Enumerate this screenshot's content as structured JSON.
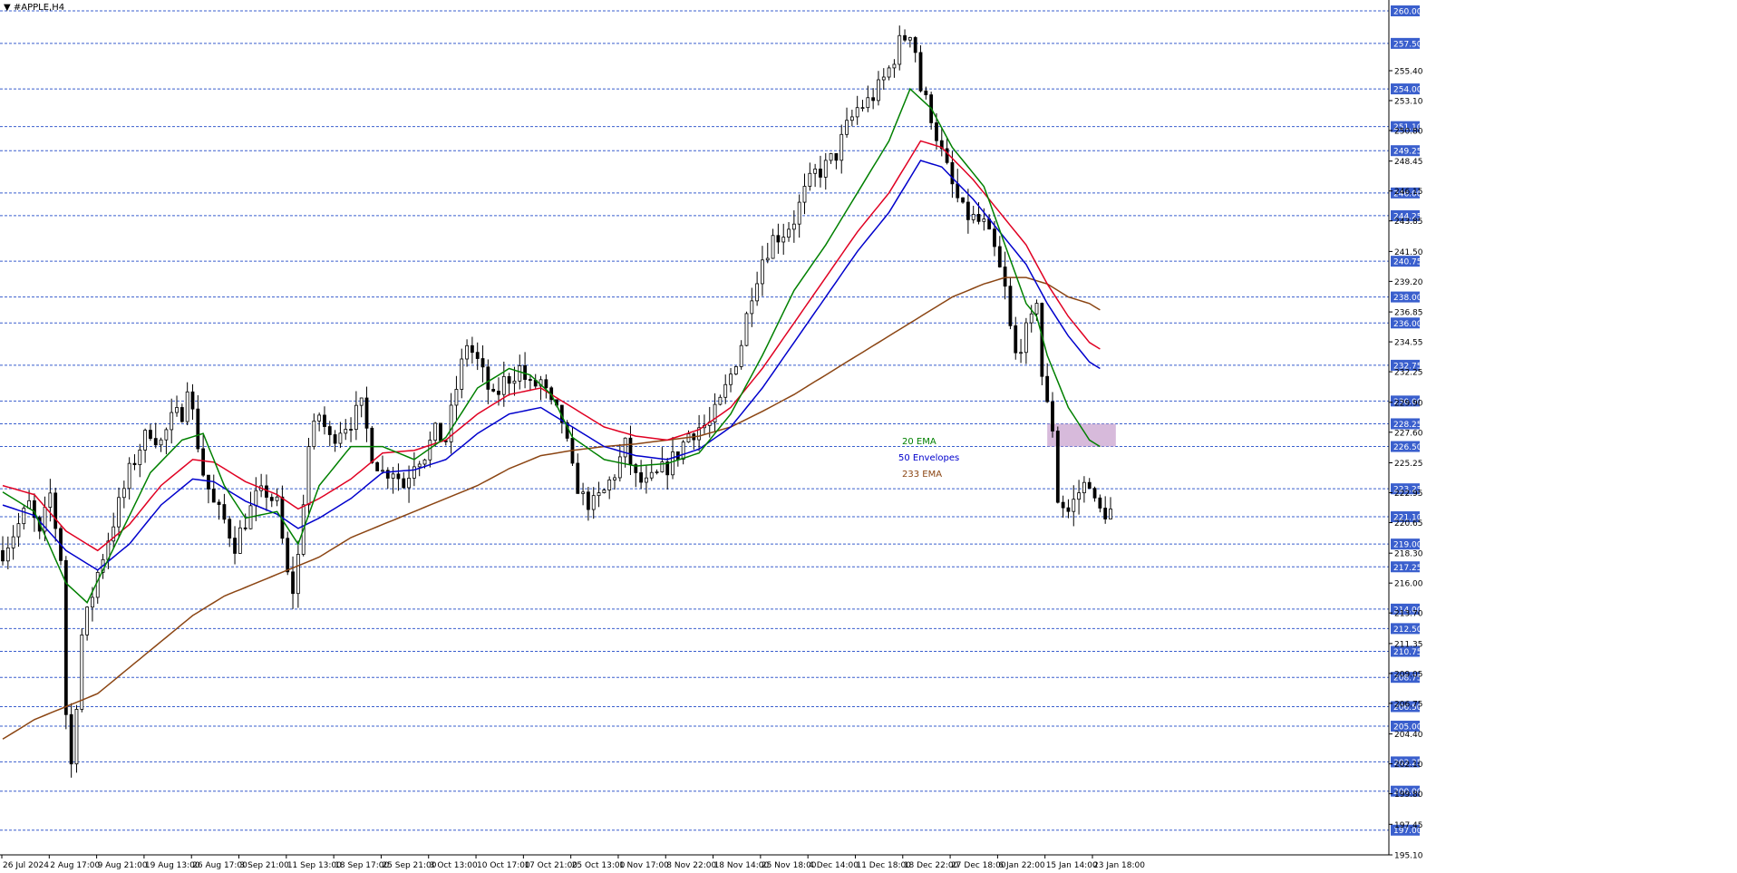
{
  "header": {
    "symbol_label": "#APPLE,H4"
  },
  "colors": {
    "background": "#ffffff",
    "candle": "#000000",
    "ema20": "#008000",
    "env_upper": "#e00022",
    "env_lower": "#0000cc",
    "ema233": "#8b4513",
    "level_line": "#3a5fcd",
    "level_label_bg": "#3a5fcd",
    "zone": "#c9a3cf"
  },
  "chart_data": {
    "type": "candlestick",
    "instrument": "#APPLE",
    "timeframe": "H4",
    "ylim": [
      195.1,
      260.0
    ],
    "y_ticks": [
      "255.40",
      "253.10",
      "250.80",
      "248.45",
      "246.15",
      "243.85",
      "241.50",
      "239.20",
      "236.85",
      "234.55",
      "232.25",
      "229.90",
      "227.60",
      "225.25",
      "222.95",
      "220.65",
      "218.30",
      "216.00",
      "213.70",
      "211.35",
      "209.05",
      "206.75",
      "204.40",
      "202.10",
      "199.80",
      "197.45",
      "195.10"
    ],
    "level_lines": [
      "260.00",
      "257.50",
      "254.00",
      "251.10",
      "249.25",
      "246.00",
      "244.25",
      "240.75",
      "238.00",
      "236.00",
      "232.75",
      "230.00",
      "228.25",
      "226.50",
      "223.25",
      "221.10",
      "219.00",
      "217.25",
      "214.00",
      "212.50",
      "210.75",
      "208.75",
      "206.50",
      "205.00",
      "202.25",
      "200.00",
      "197.00"
    ],
    "x_tick_labels": [
      "26 Jul 2024",
      "2 Aug 17:00",
      "9 Aug 21:00",
      "19 Aug 13:00",
      "26 Aug 17:00",
      "3 Sep 21:00",
      "11 Sep 13:00",
      "18 Sep 17:00",
      "25 Sep 21:00",
      "3 Oct 13:00",
      "10 Oct 17:00",
      "17 Oct 21:00",
      "25 Oct 13:00",
      "1 Nov 17:00",
      "8 Nov 22:00",
      "18 Nov 14:00",
      "25 Nov 18:00",
      "4 Dec 14:00",
      "11 Dec 18:00",
      "18 Dec 22:00",
      "27 Dec 18:00",
      "6 Jan 22:00",
      "15 Jan 14:00",
      "23 Jan 18:00"
    ],
    "price_path": [
      [
        0,
        218.5
      ],
      [
        3,
        220.5
      ],
      [
        5,
        222.0
      ],
      [
        7,
        219.5
      ],
      [
        9,
        222.8
      ],
      [
        11,
        218.0
      ],
      [
        12,
        206.0
      ],
      [
        13,
        202.0
      ],
      [
        14,
        207.0
      ],
      [
        15,
        212.0
      ],
      [
        16,
        213.5
      ],
      [
        18,
        216.8
      ],
      [
        20,
        219.5
      ],
      [
        22,
        222.0
      ],
      [
        24,
        224.5
      ],
      [
        26,
        226.5
      ],
      [
        28,
        227.8
      ],
      [
        30,
        226.8
      ],
      [
        32,
        228.5
      ],
      [
        34,
        229.2
      ],
      [
        35,
        231.5
      ],
      [
        36,
        229.0
      ],
      [
        38,
        224.5
      ],
      [
        40,
        222.0
      ],
      [
        42,
        220.8
      ],
      [
        44,
        219.0
      ],
      [
        46,
        220.8
      ],
      [
        48,
        222.5
      ],
      [
        50,
        223.0
      ],
      [
        52,
        222.0
      ],
      [
        54,
        216.5
      ],
      [
        55,
        215.5
      ],
      [
        56,
        218.0
      ],
      [
        57,
        222.5
      ],
      [
        58,
        226.5
      ],
      [
        60,
        229.0
      ],
      [
        62,
        227.0
      ],
      [
        64,
        228.0
      ],
      [
        66,
        228.5
      ],
      [
        68,
        229.5
      ],
      [
        70,
        226.0
      ],
      [
        72,
        224.5
      ],
      [
        74,
        224.8
      ],
      [
        76,
        223.5
      ],
      [
        78,
        225.5
      ],
      [
        80,
        226.0
      ],
      [
        82,
        227.5
      ],
      [
        84,
        227.0
      ],
      [
        86,
        231.0
      ],
      [
        88,
        234.5
      ],
      [
        90,
        233.0
      ],
      [
        92,
        231.0
      ],
      [
        93,
        230.0
      ],
      [
        95,
        231.5
      ],
      [
        98,
        232.5
      ],
      [
        100,
        231.0
      ],
      [
        102,
        231.5
      ],
      [
        104,
        229.5
      ],
      [
        106,
        228.5
      ],
      [
        108,
        224.5
      ],
      [
        110,
        222.5
      ],
      [
        112,
        222.0
      ],
      [
        114,
        223.0
      ],
      [
        116,
        224.5
      ],
      [
        118,
        226.5
      ],
      [
        120,
        224.0
      ],
      [
        122,
        223.5
      ],
      [
        124,
        224.2
      ],
      [
        126,
        225.0
      ],
      [
        128,
        226.0
      ],
      [
        130,
        227.5
      ],
      [
        132,
        228.0
      ],
      [
        134,
        228.2
      ],
      [
        136,
        229.8
      ],
      [
        138,
        232.0
      ],
      [
        140,
        234.5
      ],
      [
        142,
        238.5
      ],
      [
        144,
        241.0
      ],
      [
        146,
        242.5
      ],
      [
        148,
        243.0
      ],
      [
        150,
        244.0
      ],
      [
        152,
        246.0
      ],
      [
        154,
        247.5
      ],
      [
        156,
        248.0
      ],
      [
        158,
        249.0
      ],
      [
        160,
        251.0
      ],
      [
        162,
        252.5
      ],
      [
        164,
        253.0
      ],
      [
        166,
        254.0
      ],
      [
        168,
        255.5
      ],
      [
        170,
        257.5
      ],
      [
        172,
        258.5
      ],
      [
        173,
        257.0
      ],
      [
        174,
        254.0
      ],
      [
        176,
        252.0
      ],
      [
        178,
        249.0
      ],
      [
        180,
        246.5
      ],
      [
        182,
        244.5
      ],
      [
        184,
        244.0
      ],
      [
        186,
        243.5
      ],
      [
        188,
        241.5
      ],
      [
        190,
        238.5
      ],
      [
        191,
        235.5
      ],
      [
        192,
        233.5
      ],
      [
        193,
        234.5
      ],
      [
        195,
        236.0
      ],
      [
        196,
        238.0
      ],
      [
        197,
        232.0
      ],
      [
        198,
        229.5
      ],
      [
        199,
        228.0
      ],
      [
        200,
        222.5
      ],
      [
        202,
        221.5
      ],
      [
        204,
        223.0
      ],
      [
        206,
        224.0
      ],
      [
        207,
        222.0
      ],
      [
        208,
        221.5
      ]
    ],
    "ema20": [
      [
        0,
        223.0
      ],
      [
        6,
        221.5
      ],
      [
        12,
        216.0
      ],
      [
        16,
        214.5
      ],
      [
        22,
        219.5
      ],
      [
        28,
        224.5
      ],
      [
        34,
        227.0
      ],
      [
        38,
        227.5
      ],
      [
        42,
        223.5
      ],
      [
        46,
        221.0
      ],
      [
        52,
        221.5
      ],
      [
        56,
        219.0
      ],
      [
        60,
        223.5
      ],
      [
        66,
        226.5
      ],
      [
        72,
        226.5
      ],
      [
        78,
        225.5
      ],
      [
        84,
        227.2
      ],
      [
        90,
        231.0
      ],
      [
        96,
        232.5
      ],
      [
        100,
        232.0
      ],
      [
        104,
        230.5
      ],
      [
        108,
        227.2
      ],
      [
        114,
        225.5
      ],
      [
        120,
        225.0
      ],
      [
        126,
        225.2
      ],
      [
        132,
        226.0
      ],
      [
        138,
        229.0
      ],
      [
        144,
        233.5
      ],
      [
        150,
        238.5
      ],
      [
        156,
        242.0
      ],
      [
        162,
        246.0
      ],
      [
        168,
        250.0
      ],
      [
        172,
        254.0
      ],
      [
        176,
        252.5
      ],
      [
        180,
        249.5
      ],
      [
        186,
        246.5
      ],
      [
        190,
        242.0
      ],
      [
        194,
        237.5
      ],
      [
        196,
        236.5
      ],
      [
        198,
        233.5
      ],
      [
        202,
        229.5
      ],
      [
        206,
        227.0
      ],
      [
        208,
        226.5
      ]
    ],
    "env_upper": [
      [
        0,
        223.5
      ],
      [
        6,
        222.8
      ],
      [
        12,
        220.0
      ],
      [
        18,
        218.5
      ],
      [
        24,
        220.5
      ],
      [
        30,
        223.5
      ],
      [
        36,
        225.5
      ],
      [
        40,
        225.3
      ],
      [
        46,
        223.8
      ],
      [
        52,
        222.8
      ],
      [
        56,
        221.7
      ],
      [
        60,
        222.5
      ],
      [
        66,
        224.0
      ],
      [
        72,
        226.0
      ],
      [
        78,
        226.2
      ],
      [
        84,
        227.0
      ],
      [
        90,
        229.0
      ],
      [
        96,
        230.5
      ],
      [
        102,
        231.0
      ],
      [
        108,
        229.5
      ],
      [
        114,
        228.0
      ],
      [
        120,
        227.3
      ],
      [
        126,
        227.0
      ],
      [
        132,
        227.8
      ],
      [
        138,
        229.5
      ],
      [
        144,
        232.5
      ],
      [
        150,
        236.0
      ],
      [
        156,
        239.5
      ],
      [
        162,
        243.0
      ],
      [
        168,
        246.0
      ],
      [
        174,
        250.0
      ],
      [
        178,
        249.5
      ],
      [
        184,
        247.0
      ],
      [
        190,
        244.0
      ],
      [
        194,
        242.0
      ],
      [
        198,
        239.0
      ],
      [
        202,
        236.5
      ],
      [
        206,
        234.5
      ],
      [
        208,
        234.0
      ]
    ],
    "env_lower": [
      [
        0,
        222.0
      ],
      [
        6,
        221.2
      ],
      [
        12,
        218.5
      ],
      [
        18,
        217.0
      ],
      [
        24,
        219.0
      ],
      [
        30,
        222.0
      ],
      [
        36,
        224.0
      ],
      [
        40,
        223.8
      ],
      [
        46,
        222.3
      ],
      [
        52,
        221.3
      ],
      [
        56,
        220.2
      ],
      [
        60,
        221.0
      ],
      [
        66,
        222.5
      ],
      [
        72,
        224.5
      ],
      [
        78,
        224.7
      ],
      [
        84,
        225.5
      ],
      [
        90,
        227.5
      ],
      [
        96,
        229.0
      ],
      [
        102,
        229.5
      ],
      [
        108,
        228.0
      ],
      [
        114,
        226.5
      ],
      [
        120,
        225.8
      ],
      [
        126,
        225.5
      ],
      [
        132,
        226.3
      ],
      [
        138,
        228.0
      ],
      [
        144,
        231.0
      ],
      [
        150,
        234.5
      ],
      [
        156,
        238.0
      ],
      [
        162,
        241.5
      ],
      [
        168,
        244.5
      ],
      [
        174,
        248.5
      ],
      [
        178,
        248.0
      ],
      [
        184,
        245.5
      ],
      [
        190,
        242.5
      ],
      [
        194,
        240.5
      ],
      [
        198,
        237.5
      ],
      [
        202,
        235.0
      ],
      [
        206,
        233.0
      ],
      [
        208,
        232.5
      ]
    ],
    "ema233": [
      [
        0,
        204.0
      ],
      [
        6,
        205.5
      ],
      [
        12,
        206.5
      ],
      [
        18,
        207.5
      ],
      [
        24,
        209.5
      ],
      [
        30,
        211.5
      ],
      [
        36,
        213.5
      ],
      [
        42,
        215.0
      ],
      [
        48,
        216.0
      ],
      [
        54,
        217.0
      ],
      [
        60,
        218.0
      ],
      [
        66,
        219.5
      ],
      [
        72,
        220.5
      ],
      [
        78,
        221.5
      ],
      [
        84,
        222.5
      ],
      [
        90,
        223.5
      ],
      [
        96,
        224.8
      ],
      [
        102,
        225.8
      ],
      [
        108,
        226.2
      ],
      [
        114,
        226.5
      ],
      [
        120,
        226.7
      ],
      [
        126,
        227.0
      ],
      [
        132,
        227.3
      ],
      [
        138,
        228.0
      ],
      [
        144,
        229.2
      ],
      [
        150,
        230.5
      ],
      [
        156,
        232.0
      ],
      [
        162,
        233.5
      ],
      [
        168,
        235.0
      ],
      [
        174,
        236.5
      ],
      [
        180,
        238.0
      ],
      [
        186,
        239.0
      ],
      [
        190,
        239.5
      ],
      [
        194,
        239.5
      ],
      [
        198,
        239.0
      ],
      [
        202,
        238.0
      ],
      [
        206,
        237.5
      ],
      [
        208,
        237.0
      ]
    ],
    "zone": {
      "x_from": 198,
      "x_to": 211,
      "y_from": 226.5,
      "y_to": 228.25
    },
    "legend": [
      {
        "label": "20 EMA",
        "color": "#008000"
      },
      {
        "label": "50 Envelopes",
        "color": "#0000cc"
      },
      {
        "label": "233 EMA",
        "color": "#8b4513"
      }
    ]
  }
}
